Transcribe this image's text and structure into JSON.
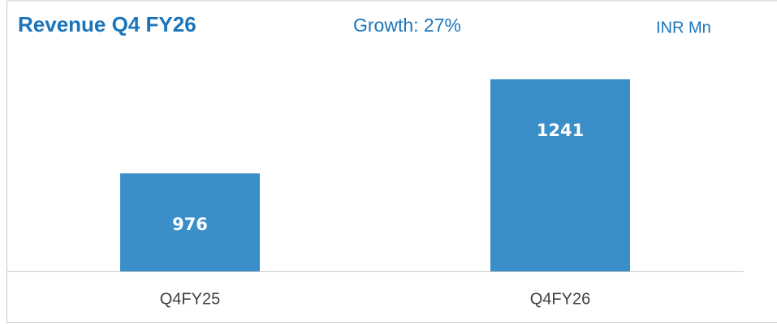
{
  "chart_data": {
    "type": "bar",
    "title": "Revenue Q4 FY26",
    "subtitle": "Growth: 27%",
    "unit_label": "INR Mn",
    "categories": [
      "Q4FY25",
      "Q4FY26"
    ],
    "values": [
      976,
      1241
    ],
    "color": "#3a8fc8",
    "ylim": [
      700,
      1300
    ],
    "grid": false
  }
}
